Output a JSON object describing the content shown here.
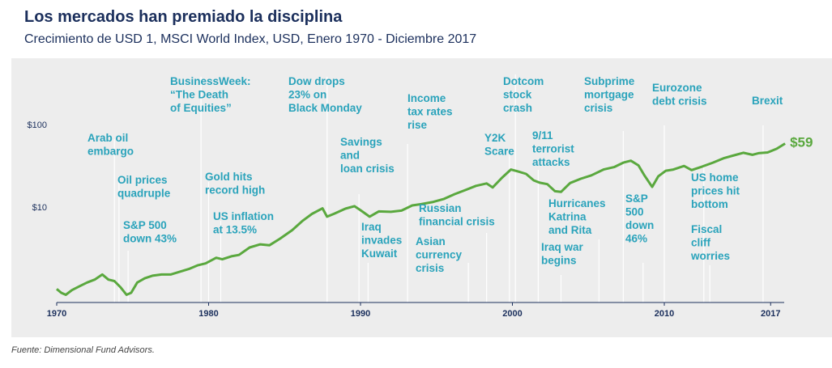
{
  "title": "Los mercados han premiado la disciplina",
  "subtitle": "Crecimiento de USD 1, MSCI World Index, USD, Enero 1970 - Diciembre 2017",
  "source": "Fuente: Dimensional Fund Advisors.",
  "colors": {
    "line": "#5aa83e",
    "annotation": "#2aa3bb",
    "title": "#1b2f5c",
    "background": "#ededed"
  },
  "chart_data": {
    "type": "line",
    "yscale": "log",
    "xlim": [
      1970,
      2018
    ],
    "ylim": [
      0.75,
      110
    ],
    "yticks": [
      {
        "value": 10,
        "label": "$10"
      },
      {
        "value": 100,
        "label": "$100"
      }
    ],
    "xticks": [
      {
        "value": 1970,
        "label": "1970"
      },
      {
        "value": 1980,
        "label": "1980"
      },
      {
        "value": 1990,
        "label": "1990"
      },
      {
        "value": 2000,
        "label": "2000"
      },
      {
        "value": 2010,
        "label": "2010"
      },
      {
        "value": 2017,
        "label": "2017"
      }
    ],
    "end_label": "$59",
    "series": [
      {
        "x": [
          1970.0,
          1970.3,
          1970.6,
          1971.0,
          1971.5,
          1972.0,
          1972.5,
          1973.0,
          1973.4,
          1973.8,
          1974.2,
          1974.6,
          1974.9,
          1975.3,
          1975.8,
          1976.3,
          1976.9,
          1977.5,
          1978.0,
          1978.7,
          1979.3,
          1979.8,
          1980.5,
          1980.9,
          1981.5,
          1982.0,
          1982.7,
          1983.4,
          1984.0,
          1984.7,
          1985.5,
          1986.2,
          1986.8,
          1987.5,
          1987.8,
          1988.3,
          1989.0,
          1989.6,
          1990.0,
          1990.6,
          1991.2,
          1992.0,
          1992.7,
          1993.4,
          1994.0,
          1994.8,
          1995.5,
          1996.2,
          1996.9,
          1997.6,
          1998.3,
          1998.7,
          1999.3,
          1999.9,
          2000.3,
          2000.9,
          2001.4,
          2001.8,
          2002.3,
          2002.8,
          2003.2,
          2003.8,
          2004.5,
          2005.2,
          2006.0,
          2006.7,
          2007.3,
          2007.8,
          2008.3,
          2008.7,
          2009.2,
          2009.6,
          2010.1,
          2010.6,
          2011.3,
          2011.8,
          2012.5,
          2013.2,
          2013.9,
          2014.5,
          2015.2,
          2015.8,
          2016.2,
          2016.8,
          2017.4,
          2017.95
        ],
        "y": [
          1.0,
          0.9,
          0.85,
          0.97,
          1.08,
          1.2,
          1.3,
          1.5,
          1.3,
          1.25,
          1.05,
          0.85,
          0.9,
          1.2,
          1.35,
          1.45,
          1.5,
          1.5,
          1.6,
          1.75,
          1.95,
          2.05,
          2.4,
          2.3,
          2.5,
          2.6,
          3.2,
          3.5,
          3.4,
          4.1,
          5.2,
          6.8,
          8.2,
          9.6,
          7.6,
          8.3,
          9.5,
          10.2,
          9.1,
          7.6,
          8.8,
          8.7,
          9.0,
          10.4,
          10.8,
          11.5,
          12.5,
          14.3,
          16.0,
          18.0,
          19.3,
          17.2,
          22.5,
          28.5,
          27.2,
          25.2,
          21.0,
          19.7,
          18.9,
          15.5,
          15.2,
          19.5,
          22.0,
          24.2,
          28.5,
          30.5,
          34.5,
          36.5,
          32.0,
          24.0,
          17.5,
          23.5,
          27.5,
          28.5,
          31.5,
          28.0,
          31.0,
          34.5,
          39.0,
          42.0,
          45.5,
          43.0,
          45.0,
          46.0,
          51.0,
          59.0
        ]
      }
    ],
    "annotations": [
      {
        "year": 1973.8,
        "label": "Arab oil\nembargo"
      },
      {
        "year": 1974.1,
        "label": "Oil prices\nquadruple"
      },
      {
        "year": 1974.7,
        "label": "S&P 500\ndown 43%"
      },
      {
        "year": 1979.5,
        "label": "BusinessWeek:\n“The Death\nof Equities”"
      },
      {
        "year": 1980.0,
        "label": "Gold hits\nrecord high"
      },
      {
        "year": 1980.8,
        "label": "US inflation\nat 13.5%"
      },
      {
        "year": 1987.8,
        "label": "Dow drops\n23% on\nBlack Monday"
      },
      {
        "year": 1989.9,
        "label": "Savings\nand\nloan crisis"
      },
      {
        "year": 1990.5,
        "label": "Iraq\ninvades\nKuwait"
      },
      {
        "year": 1993.1,
        "label": "Income\ntax rates\nrise"
      },
      {
        "year": 1997.1,
        "label": "Asian\ncurrency\ncrisis"
      },
      {
        "year": 1998.3,
        "label": "Russian\nfinancial crisis"
      },
      {
        "year": 1999.8,
        "label": "Y2K\nScare"
      },
      {
        "year": 2000.2,
        "label": "Dotcom\nstock\ncrash"
      },
      {
        "year": 2001.7,
        "label": "9/11\nterrorist\nattacks"
      },
      {
        "year": 2003.2,
        "label": "Iraq war\nbegins"
      },
      {
        "year": 2005.7,
        "label": "Hurricanes\nKatrina\nand Rita"
      },
      {
        "year": 2007.3,
        "label": "Subprime\nmortgage\ncrisis"
      },
      {
        "year": 2008.6,
        "label": "S&P\n500\ndown\n46%"
      },
      {
        "year": 2010.0,
        "label": "Eurozone\ndebt crisis"
      },
      {
        "year": 2012.6,
        "label": "US home\nprices hit\nbottom"
      },
      {
        "year": 2013.0,
        "label": "Fiscal\ncliff\nworries"
      },
      {
        "year": 2016.5,
        "label": "Brexit"
      }
    ]
  }
}
